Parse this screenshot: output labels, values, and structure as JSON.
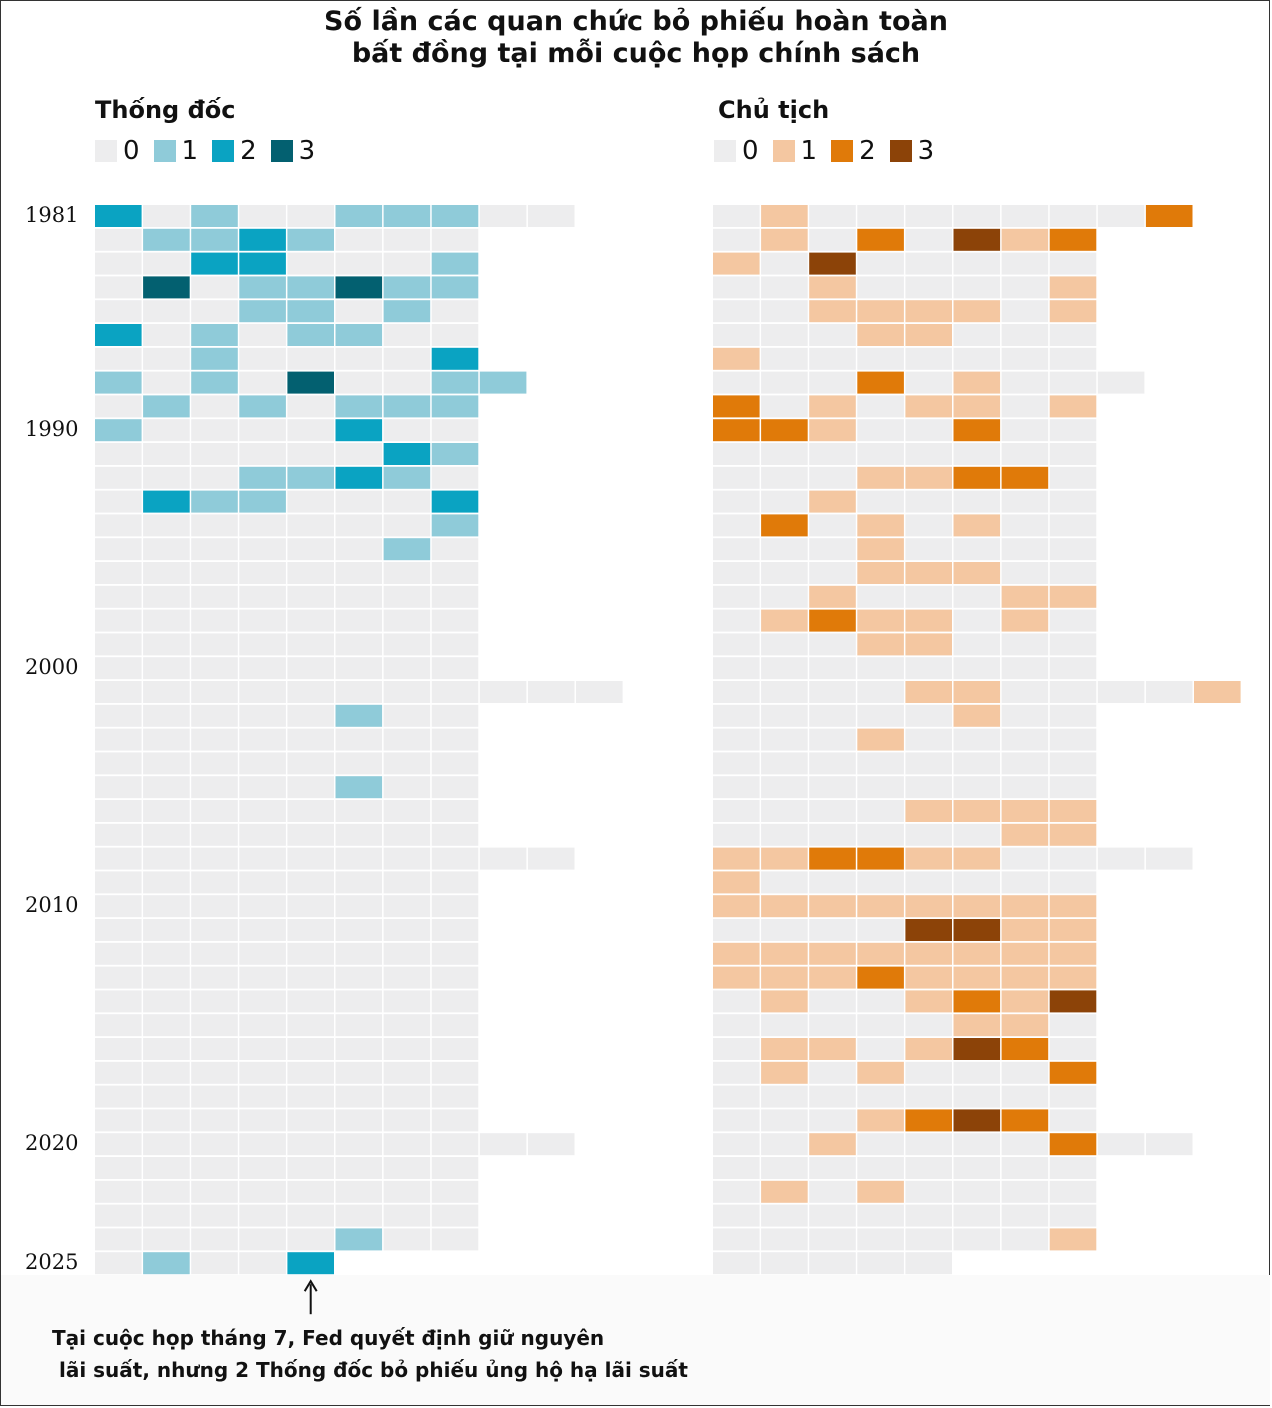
{
  "title_line1": "Số lần các quan chức bỏ phiếu hoàn toàn",
  "title_line2": "bất đồng tại mỗi cuộc họp chính sách",
  "annotation_line1": "Tại cuộc họp tháng 7, Fed quyết định giữ nguyên",
  "annotation_line2": " lãi suất, nhưng 2 Thống đốc bỏ phiếu ủng hộ hạ lãi suất",
  "year_labels": [
    {
      "label": "1981",
      "row": 0
    },
    {
      "label": "1990",
      "row": 9
    },
    {
      "label": "2000",
      "row": 19
    },
    {
      "label": "2010",
      "row": 29
    },
    {
      "label": "2020",
      "row": 39
    },
    {
      "label": "2025",
      "row": 44
    }
  ],
  "colors": {
    "empty": "#ededee",
    "governors": [
      "#ededee",
      "#8fcbd9",
      "#0aa3c2",
      "#036070"
    ],
    "chair": [
      "#ededee",
      "#f4c7a1",
      "#e07a09",
      "#8c4308"
    ]
  },
  "chart_data": {
    "type": "heatmap",
    "title": "Số lần các quan chức bỏ phiếu hoàn toàn bất đồng tại mỗi cuộc họp chính sách",
    "row_unit": "year (1981–2025), one row per year",
    "column_unit": "policy meeting within the year",
    "panels": [
      {
        "name": "Thống đốc",
        "legend": [
          "0",
          "1",
          "2",
          "3"
        ],
        "rows": [
          [
            2,
            0,
            1,
            0,
            0,
            1,
            1,
            1,
            0,
            0
          ],
          [
            0,
            1,
            1,
            2,
            1,
            0,
            0,
            0
          ],
          [
            0,
            0,
            2,
            2,
            0,
            0,
            0,
            1
          ],
          [
            0,
            3,
            0,
            1,
            1,
            3,
            1,
            1
          ],
          [
            0,
            0,
            0,
            1,
            1,
            0,
            1,
            0
          ],
          [
            2,
            0,
            1,
            0,
            1,
            1,
            0,
            0
          ],
          [
            0,
            0,
            1,
            0,
            0,
            0,
            0,
            2
          ],
          [
            1,
            0,
            1,
            0,
            3,
            0,
            0,
            1,
            1
          ],
          [
            0,
            1,
            0,
            1,
            0,
            1,
            1,
            1
          ],
          [
            1,
            0,
            0,
            0,
            0,
            2,
            0,
            0
          ],
          [
            0,
            0,
            0,
            0,
            0,
            0,
            2,
            1
          ],
          [
            0,
            0,
            0,
            1,
            1,
            2,
            1,
            0
          ],
          [
            0,
            2,
            1,
            1,
            0,
            0,
            0,
            2
          ],
          [
            0,
            0,
            0,
            0,
            0,
            0,
            0,
            1
          ],
          [
            0,
            0,
            0,
            0,
            0,
            0,
            1,
            0
          ],
          [
            0,
            0,
            0,
            0,
            0,
            0,
            0,
            0
          ],
          [
            0,
            0,
            0,
            0,
            0,
            0,
            0,
            0
          ],
          [
            0,
            0,
            0,
            0,
            0,
            0,
            0,
            0
          ],
          [
            0,
            0,
            0,
            0,
            0,
            0,
            0,
            0
          ],
          [
            0,
            0,
            0,
            0,
            0,
            0,
            0,
            0
          ],
          [
            0,
            0,
            0,
            0,
            0,
            0,
            0,
            0,
            0,
            0,
            0
          ],
          [
            0,
            0,
            0,
            0,
            0,
            1,
            0,
            0
          ],
          [
            0,
            0,
            0,
            0,
            0,
            0,
            0,
            0
          ],
          [
            0,
            0,
            0,
            0,
            0,
            0,
            0,
            0
          ],
          [
            0,
            0,
            0,
            0,
            0,
            1,
            0,
            0
          ],
          [
            0,
            0,
            0,
            0,
            0,
            0,
            0,
            0
          ],
          [
            0,
            0,
            0,
            0,
            0,
            0,
            0,
            0
          ],
          [
            0,
            0,
            0,
            0,
            0,
            0,
            0,
            0,
            0,
            0
          ],
          [
            0,
            0,
            0,
            0,
            0,
            0,
            0,
            0
          ],
          [
            0,
            0,
            0,
            0,
            0,
            0,
            0,
            0
          ],
          [
            0,
            0,
            0,
            0,
            0,
            0,
            0,
            0
          ],
          [
            0,
            0,
            0,
            0,
            0,
            0,
            0,
            0
          ],
          [
            0,
            0,
            0,
            0,
            0,
            0,
            0,
            0
          ],
          [
            0,
            0,
            0,
            0,
            0,
            0,
            0,
            0
          ],
          [
            0,
            0,
            0,
            0,
            0,
            0,
            0,
            0
          ],
          [
            0,
            0,
            0,
            0,
            0,
            0,
            0,
            0
          ],
          [
            0,
            0,
            0,
            0,
            0,
            0,
            0,
            0
          ],
          [
            0,
            0,
            0,
            0,
            0,
            0,
            0,
            0
          ],
          [
            0,
            0,
            0,
            0,
            0,
            0,
            0,
            0
          ],
          [
            0,
            0,
            0,
            0,
            0,
            0,
            0,
            0,
            0,
            0
          ],
          [
            0,
            0,
            0,
            0,
            0,
            0,
            0,
            0
          ],
          [
            0,
            0,
            0,
            0,
            0,
            0,
            0,
            0
          ],
          [
            0,
            0,
            0,
            0,
            0,
            0,
            0,
            0
          ],
          [
            0,
            0,
            0,
            0,
            0,
            1,
            0,
            0
          ],
          [
            0,
            1,
            0,
            0,
            2
          ]
        ]
      },
      {
        "name": "Chủ tịch",
        "legend": [
          "0",
          "1",
          "2",
          "3"
        ],
        "rows": [
          [
            0,
            1,
            0,
            0,
            0,
            0,
            0,
            0,
            0,
            2
          ],
          [
            0,
            1,
            0,
            2,
            0,
            3,
            1,
            2
          ],
          [
            1,
            0,
            3,
            0,
            0,
            0,
            0,
            0
          ],
          [
            0,
            0,
            1,
            0,
            0,
            0,
            0,
            1
          ],
          [
            0,
            0,
            1,
            1,
            1,
            1,
            0,
            1
          ],
          [
            0,
            0,
            0,
            1,
            1,
            0,
            0,
            0
          ],
          [
            1,
            0,
            0,
            0,
            0,
            0,
            0,
            0
          ],
          [
            0,
            0,
            0,
            2,
            0,
            1,
            0,
            0,
            0
          ],
          [
            2,
            0,
            1,
            0,
            1,
            1,
            0,
            1
          ],
          [
            2,
            2,
            1,
            0,
            0,
            2,
            0,
            0
          ],
          [
            0,
            0,
            0,
            0,
            0,
            0,
            0,
            0
          ],
          [
            0,
            0,
            0,
            1,
            1,
            2,
            2,
            0
          ],
          [
            0,
            0,
            1,
            0,
            0,
            0,
            0,
            0
          ],
          [
            0,
            2,
            0,
            1,
            0,
            1,
            0,
            0
          ],
          [
            0,
            0,
            0,
            1,
            0,
            0,
            0,
            0
          ],
          [
            0,
            0,
            0,
            1,
            1,
            1,
            0,
            0
          ],
          [
            0,
            0,
            1,
            0,
            0,
            0,
            1,
            1
          ],
          [
            0,
            1,
            2,
            1,
            1,
            0,
            1,
            0
          ],
          [
            0,
            0,
            0,
            1,
            1,
            0,
            0,
            0
          ],
          [
            0,
            0,
            0,
            0,
            0,
            0,
            0,
            0
          ],
          [
            0,
            0,
            0,
            0,
            1,
            1,
            0,
            0,
            0,
            0,
            1
          ],
          [
            0,
            0,
            0,
            0,
            0,
            1,
            0,
            0
          ],
          [
            0,
            0,
            0,
            1,
            0,
            0,
            0,
            0
          ],
          [
            0,
            0,
            0,
            0,
            0,
            0,
            0,
            0
          ],
          [
            0,
            0,
            0,
            0,
            0,
            0,
            0,
            0
          ],
          [
            0,
            0,
            0,
            0,
            1,
            1,
            1,
            1
          ],
          [
            0,
            0,
            0,
            0,
            0,
            0,
            1,
            1
          ],
          [
            1,
            1,
            2,
            2,
            1,
            1,
            0,
            0,
            0,
            0
          ],
          [
            1,
            0,
            0,
            0,
            0,
            0,
            0,
            0
          ],
          [
            1,
            1,
            1,
            1,
            1,
            1,
            1,
            1
          ],
          [
            0,
            0,
            0,
            0,
            3,
            3,
            1,
            1
          ],
          [
            1,
            1,
            1,
            1,
            1,
            1,
            1,
            1
          ],
          [
            1,
            1,
            1,
            2,
            1,
            1,
            1,
            1
          ],
          [
            0,
            1,
            0,
            0,
            1,
            2,
            1,
            3
          ],
          [
            0,
            0,
            0,
            0,
            0,
            1,
            1,
            0
          ],
          [
            0,
            1,
            1,
            0,
            1,
            3,
            2,
            0
          ],
          [
            0,
            1,
            0,
            1,
            0,
            0,
            0,
            2
          ],
          [
            0,
            0,
            0,
            0,
            0,
            0,
            0,
            0
          ],
          [
            0,
            0,
            0,
            1,
            2,
            3,
            2,
            0
          ],
          [
            0,
            0,
            1,
            0,
            0,
            0,
            0,
            2,
            0,
            0
          ],
          [
            0,
            0,
            0,
            0,
            0,
            0,
            0,
            0
          ],
          [
            0,
            1,
            0,
            1,
            0,
            0,
            0,
            0
          ],
          [
            0,
            0,
            0,
            0,
            0,
            0,
            0,
            0
          ],
          [
            0,
            0,
            0,
            0,
            0,
            0,
            0,
            1
          ],
          [
            0,
            0,
            0,
            0,
            0
          ]
        ]
      }
    ]
  }
}
